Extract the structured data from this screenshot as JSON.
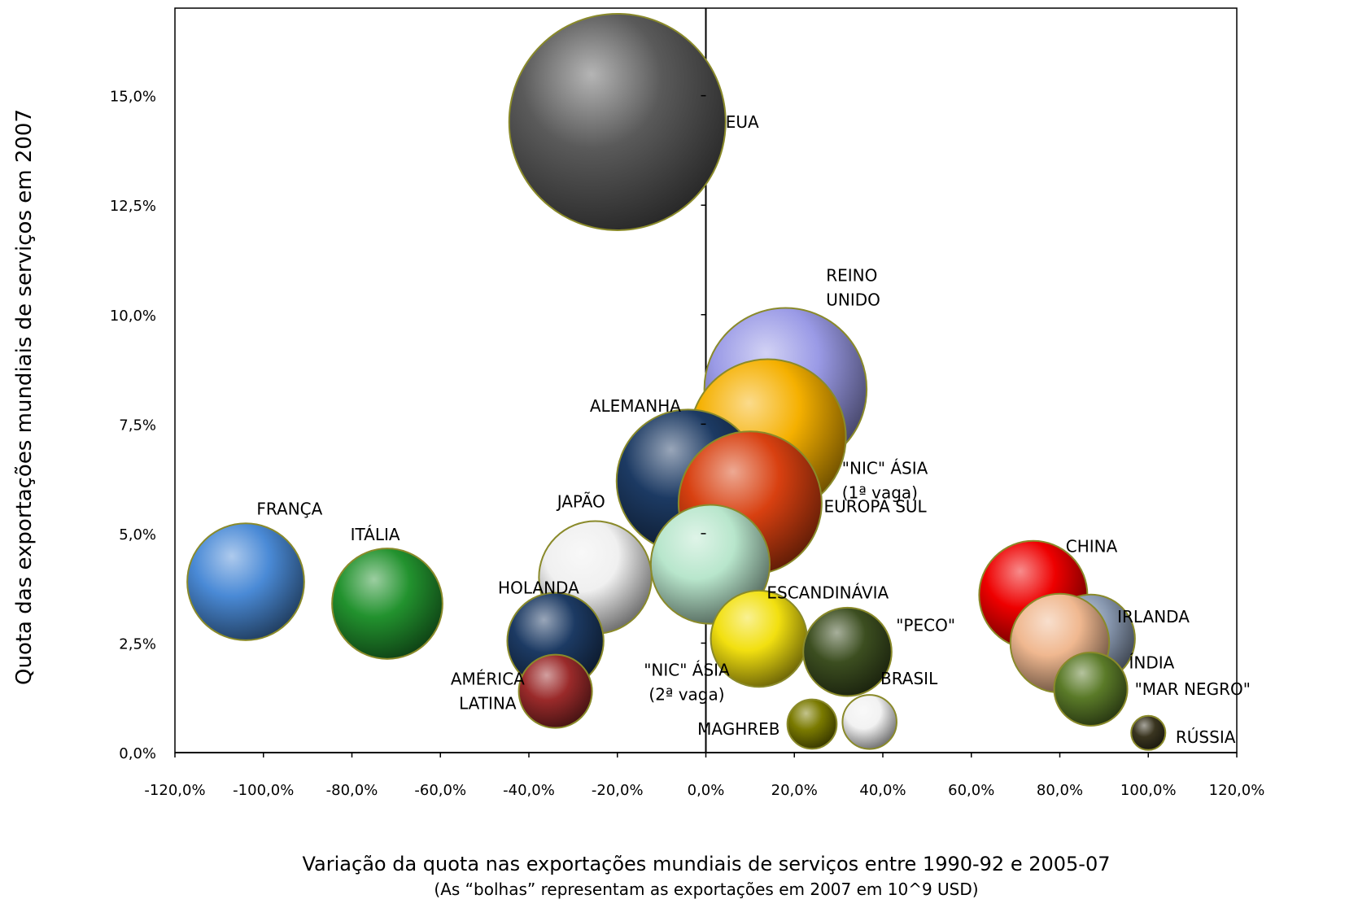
{
  "chart_data": {
    "type": "bubble",
    "xlabel": "Variação da quota nas exportações mundiais de serviços entre 1990-92 e 2005-07",
    "xlabel_note": "(As “bolhas” representam as exportações em 2007 em 10^9 USD)",
    "ylabel": "Quota das exportações mundiais de serviços em 2007",
    "xlim": [
      -120,
      120
    ],
    "ylim": [
      0,
      17
    ],
    "x_ticks": [
      -120,
      -100,
      -80,
      -60,
      -40,
      -20,
      0,
      20,
      40,
      60,
      80,
      100,
      120
    ],
    "y_ticks": [
      0,
      2.5,
      5,
      7.5,
      10,
      12.5,
      15
    ],
    "x_tick_labels": [
      "-120,0%",
      "-100,0%",
      "-80,0%",
      "-60,0%",
      "-40,0%",
      "-20,0%",
      "0,0%",
      "20,0%",
      "40,0%",
      "60,0%",
      "80,0%",
      "100,0%",
      "120,0%"
    ],
    "y_tick_labels": [
      "0,0%",
      "2,5%",
      "5,0%",
      "7,5%",
      "10,0%",
      "12,5%",
      "15,0%"
    ],
    "series": [
      {
        "name": "EUA",
        "label_lines": [
          "EUA"
        ],
        "x": -20,
        "y": 14.4,
        "size": 480,
        "color": "#5a5a5a"
      },
      {
        "name": "REINO UNIDO",
        "label_lines": [
          "REINO",
          "UNIDO"
        ],
        "x": 18,
        "y": 8.3,
        "size": 270,
        "color": "#9a9ae6"
      },
      {
        "name": "\"NIC\" ÁSIA (1ª vaga)",
        "label_lines": [
          "\"NIC\" ÁSIA",
          "(1ª vaga)"
        ],
        "x": 14,
        "y": 7.2,
        "size": 250,
        "color": "#f5b000"
      },
      {
        "name": "ALEMANHA",
        "label_lines": [
          "ALEMANHA"
        ],
        "x": -4,
        "y": 6.2,
        "size": 210,
        "color": "#1c3a63"
      },
      {
        "name": "EUROPA SUL",
        "label_lines": [
          "EUROPA SUL"
        ],
        "x": 10,
        "y": 5.7,
        "size": 210,
        "color": "#d84010"
      },
      {
        "name": "ESCANDINÁVIA",
        "label_lines": [
          "ESCANDINÁVIA"
        ],
        "x": 1,
        "y": 4.3,
        "size": 145,
        "color": "#b8e6cc"
      },
      {
        "name": "JAPÃO",
        "label_lines": [
          "JAPÃO"
        ],
        "x": -25,
        "y": 4.0,
        "size": 130,
        "color": "#f0f0f0"
      },
      {
        "name": "FRANÇA",
        "label_lines": [
          "FRANÇA"
        ],
        "x": -104,
        "y": 3.9,
        "size": 140,
        "color": "#4a8ad6"
      },
      {
        "name": "ITÁLIA",
        "label_lines": [
          "ITÁLIA"
        ],
        "x": -72,
        "y": 3.4,
        "size": 125,
        "color": "#22922e"
      },
      {
        "name": "HOLANDA",
        "label_lines": [
          "HOLANDA"
        ],
        "x": -34,
        "y": 2.55,
        "size": 95,
        "color": "#1c3a63"
      },
      {
        "name": "AMÉRICA LATINA",
        "label_lines": [
          "AMÉRICA",
          "LATINA"
        ],
        "x": -34,
        "y": 1.4,
        "size": 55,
        "color": "#9a2a2a"
      },
      {
        "name": "\"NIC\" ÁSIA (2ª vaga)",
        "label_lines": [
          "\"NIC\" ÁSIA",
          "(2ª vaga)"
        ],
        "x": 12,
        "y": 2.6,
        "size": 95,
        "color": "#f2e010"
      },
      {
        "name": "\"PECO\"",
        "label_lines": [
          "\"PECO\""
        ],
        "x": 32,
        "y": 2.3,
        "size": 80,
        "color": "#3c4e20"
      },
      {
        "name": "BRASIL",
        "label_lines": [
          "BRASIL"
        ],
        "x": 37,
        "y": 0.7,
        "size": 30,
        "color": "#f2f2f2"
      },
      {
        "name": "MAGHREB",
        "label_lines": [
          "MAGHREB"
        ],
        "x": 24,
        "y": 0.65,
        "size": 25,
        "color": "#7a7a00"
      },
      {
        "name": "CHINA",
        "label_lines": [
          "CHINA"
        ],
        "x": 74,
        "y": 3.6,
        "size": 120,
        "color": "#ee0000"
      },
      {
        "name": "IRLANDA",
        "label_lines": [
          "IRLANDA"
        ],
        "x": 87,
        "y": 2.6,
        "size": 80,
        "color": "#8898b0"
      },
      {
        "name": "ÍNDIA",
        "label_lines": [
          "ÍNDIA"
        ],
        "x": 80,
        "y": 2.5,
        "size": 100,
        "color": "#f0b890"
      },
      {
        "name": "\"MAR NEGRO\"",
        "label_lines": [
          "\"MAR NEGRO\""
        ],
        "x": 87,
        "y": 1.45,
        "size": 55,
        "color": "#5a7a28"
      },
      {
        "name": "RÚSSIA",
        "label_lines": [
          "RÚSSIA"
        ],
        "x": 100,
        "y": 0.45,
        "size": 12,
        "color": "#3a3520"
      }
    ]
  }
}
